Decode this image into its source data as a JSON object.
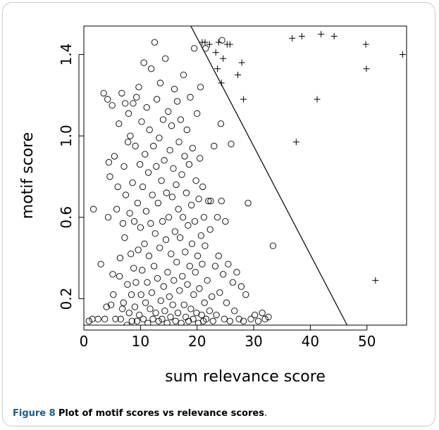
{
  "caption": {
    "figure_label": "Figure 8",
    "title": "Plot of motif scores vs relevance scores",
    "end": "."
  },
  "chart_data": {
    "type": "scatter",
    "xlabel": "sum relevance score",
    "ylabel": "motif score",
    "xlim": [
      0,
      57
    ],
    "ylim": [
      0.07,
      1.54
    ],
    "xticks": [
      "0",
      "10",
      "20",
      "30",
      "40",
      "50"
    ],
    "yticks": [
      "0.2",
      "0.6",
      "1.0",
      "1.4"
    ],
    "xtick_values": [
      0,
      10,
      20,
      30,
      40,
      50
    ],
    "ytick_values": [
      0.2,
      0.6,
      1.0,
      1.4
    ],
    "grid": false,
    "reference_line": {
      "from": [
        18.9,
        1.54
      ],
      "to": [
        46.5,
        0.07
      ]
    },
    "series": [
      {
        "marker": "circle",
        "points": [
          [
            0.9,
            0.09
          ],
          [
            1.5,
            0.1
          ],
          [
            1.7,
            0.64
          ],
          [
            2.5,
            0.1
          ],
          [
            3.0,
            0.37
          ],
          [
            3.5,
            1.21
          ],
          [
            3.7,
            0.1
          ],
          [
            4.0,
            0.16
          ],
          [
            4.2,
            1.18
          ],
          [
            4.3,
            0.6
          ],
          [
            4.4,
            0.87
          ],
          [
            4.6,
            0.8
          ],
          [
            4.8,
            0.17
          ],
          [
            5.0,
            1.15
          ],
          [
            5.1,
            0.32
          ],
          [
            5.2,
            0.22
          ],
          [
            5.4,
            0.9
          ],
          [
            5.6,
            0.1
          ],
          [
            5.8,
            0.64
          ],
          [
            6.0,
            0.75
          ],
          [
            6.2,
            1.06
          ],
          [
            6.3,
            0.31
          ],
          [
            6.4,
            0.4
          ],
          [
            6.5,
            0.1
          ],
          [
            6.7,
            1.21
          ],
          [
            6.8,
            0.15
          ],
          [
            6.9,
            0.57
          ],
          [
            7.0,
            0.18
          ],
          [
            7.1,
            0.85
          ],
          [
            7.2,
            0.5
          ],
          [
            7.3,
            1.16
          ],
          [
            7.4,
            0.71
          ],
          [
            7.6,
            0.07
          ],
          [
            7.7,
            0.27
          ],
          [
            7.8,
            0.97
          ],
          [
            7.9,
            1.11
          ],
          [
            8.0,
            0.13
          ],
          [
            8.1,
            0.62
          ],
          [
            8.2,
            1.0
          ],
          [
            8.3,
            0.42
          ],
          [
            8.4,
            0.22
          ],
          [
            8.5,
            0.09
          ],
          [
            8.6,
            0.77
          ],
          [
            8.7,
            1.16
          ],
          [
            8.8,
            0.35
          ],
          [
            8.9,
            0.58
          ],
          [
            9.0,
            0.16
          ],
          [
            9.1,
            0.95
          ],
          [
            9.2,
            0.28
          ],
          [
            9.3,
            1.19
          ],
          [
            9.4,
            0.09
          ],
          [
            9.5,
            0.67
          ],
          [
            9.6,
            0.44
          ],
          [
            9.7,
            1.24
          ],
          [
            9.8,
            0.12
          ],
          [
            9.9,
            0.86
          ],
          [
            10.0,
            0.55
          ],
          [
            10.1,
            0.22
          ],
          [
            10.2,
            1.07
          ],
          [
            10.3,
            0.34
          ],
          [
            10.4,
            0.75
          ],
          [
            10.5,
            0.1
          ],
          [
            10.6,
            1.36
          ],
          [
            10.7,
            0.47
          ],
          [
            10.8,
            0.91
          ],
          [
            10.9,
            0.18
          ],
          [
            11.0,
            0.63
          ],
          [
            11.1,
            1.14
          ],
          [
            11.2,
            0.28
          ],
          [
            11.3,
            0.08
          ],
          [
            11.4,
            0.82
          ],
          [
            11.5,
            0.41
          ],
          [
            11.6,
            1.03
          ],
          [
            11.7,
            0.15
          ],
          [
            11.8,
            0.57
          ],
          [
            11.9,
            1.33
          ],
          [
            12.0,
            0.23
          ],
          [
            12.1,
            0.71
          ],
          [
            12.2,
            0.1
          ],
          [
            12.3,
            0.95
          ],
          [
            12.4,
            0.36
          ],
          [
            12.5,
            1.46
          ],
          [
            12.6,
            0.52
          ],
          [
            12.7,
            0.13
          ],
          [
            12.8,
            0.85
          ],
          [
            12.9,
            1.18
          ],
          [
            13.0,
            0.3
          ],
          [
            13.1,
            0.67
          ],
          [
            13.2,
            0.09
          ],
          [
            13.3,
            0.99
          ],
          [
            13.4,
            0.45
          ],
          [
            13.5,
            1.26
          ],
          [
            13.6,
            0.19
          ],
          [
            13.7,
            0.78
          ],
          [
            13.8,
            0.1
          ],
          [
            13.9,
            0.58
          ],
          [
            14.0,
            1.08
          ],
          [
            14.1,
            0.26
          ],
          [
            14.2,
            0.88
          ],
          [
            14.3,
            0.14
          ],
          [
            14.4,
            1.38
          ],
          [
            14.5,
            0.49
          ],
          [
            14.6,
            0.72
          ],
          [
            14.7,
            0.08
          ],
          [
            14.8,
            0.33
          ],
          [
            14.9,
            1.12
          ],
          [
            15.0,
            0.6
          ],
          [
            15.1,
            0.21
          ],
          [
            15.2,
            0.93
          ],
          [
            15.3,
            0.11
          ],
          [
            15.4,
            0.42
          ],
          [
            15.5,
            1.05
          ],
          [
            15.6,
            0.7
          ],
          [
            15.7,
            0.17
          ],
          [
            15.8,
            0.84
          ],
          [
            15.9,
            0.29
          ],
          [
            16.0,
            1.23
          ],
          [
            16.1,
            0.53
          ],
          [
            16.2,
            0.09
          ],
          [
            16.3,
            0.76
          ],
          [
            16.4,
            0.38
          ],
          [
            16.5,
            1.17
          ],
          [
            16.6,
            0.13
          ],
          [
            16.7,
            0.64
          ],
          [
            16.8,
            0.97
          ],
          [
            16.9,
            0.24
          ],
          [
            17.0,
            0.5
          ],
          [
            17.1,
            1.08
          ],
          [
            17.2,
            0.08
          ],
          [
            17.3,
            0.81
          ],
          [
            17.4,
            0.31
          ],
          [
            17.5,
            0.6
          ],
          [
            17.6,
            1.3
          ],
          [
            17.7,
            0.17
          ],
          [
            17.8,
            0.9
          ],
          [
            17.9,
            0.43
          ],
          [
            18.0,
            0.11
          ],
          [
            18.1,
            0.72
          ],
          [
            18.2,
            1.03
          ],
          [
            18.3,
            0.27
          ],
          [
            18.4,
            0.56
          ],
          [
            18.5,
            0.09
          ],
          [
            18.6,
            0.86
          ],
          [
            18.7,
            0.36
          ],
          [
            18.8,
            1.19
          ],
          [
            18.9,
            0.15
          ],
          [
            19.0,
            0.66
          ],
          [
            19.1,
            0.47
          ],
          [
            19.2,
            0.94
          ],
          [
            19.3,
            0.1
          ],
          [
            19.4,
            0.22
          ],
          [
            19.5,
            1.43
          ],
          [
            19.6,
            0.58
          ],
          [
            19.7,
            0.33
          ],
          [
            19.8,
            0.78
          ],
          [
            19.9,
            0.13
          ],
          [
            20.0,
            1.11
          ],
          [
            20.1,
            0.41
          ],
          [
            20.2,
            0.08
          ],
          [
            20.3,
            0.69
          ],
          [
            20.4,
            0.25
          ],
          [
            20.5,
            0.89
          ],
          [
            20.6,
            1.24
          ],
          [
            20.7,
            0.51
          ],
          [
            20.8,
            0.12
          ],
          [
            20.9,
            0.37
          ],
          [
            21.0,
            0.75
          ],
          [
            21.1,
            0.09
          ],
          [
            21.2,
            0.6
          ],
          [
            21.3,
            0.18
          ],
          [
            21.4,
            0.46
          ],
          [
            21.5,
            1.43
          ],
          [
            21.6,
            0.1
          ],
          [
            21.8,
            0.29
          ],
          [
            22.0,
            0.68
          ],
          [
            22.2,
            0.14
          ],
          [
            22.3,
            0.54
          ],
          [
            22.4,
            0.68
          ],
          [
            22.6,
            0.21
          ],
          [
            22.8,
            0.09
          ],
          [
            23.0,
            0.95
          ],
          [
            23.2,
            0.36
          ],
          [
            23.4,
            0.12
          ],
          [
            23.6,
            0.6
          ],
          [
            23.8,
            0.41
          ],
          [
            24.0,
            0.23
          ],
          [
            24.2,
            1.06
          ],
          [
            24.3,
            0.68
          ],
          [
            24.4,
            1.47
          ],
          [
            24.6,
            0.32
          ],
          [
            24.8,
            0.1
          ],
          [
            25.0,
            0.58
          ],
          [
            25.2,
            0.18
          ],
          [
            25.5,
            0.37
          ],
          [
            25.8,
            0.09
          ],
          [
            26.0,
            0.96
          ],
          [
            26.3,
            0.28
          ],
          [
            26.6,
            0.14
          ],
          [
            27.0,
            0.33
          ],
          [
            27.4,
            0.1
          ],
          [
            27.8,
            0.26
          ],
          [
            28.2,
            0.09
          ],
          [
            28.6,
            0.22
          ],
          [
            29.0,
            0.67
          ],
          [
            29.5,
            0.1
          ],
          [
            30.2,
            0.12
          ],
          [
            30.8,
            0.09
          ],
          [
            31.5,
            0.13
          ],
          [
            32.0,
            0.1
          ],
          [
            32.6,
            0.11
          ],
          [
            33.4,
            0.46
          ]
        ]
      },
      {
        "marker": "plus",
        "points": [
          [
            20.9,
            1.46
          ],
          [
            21.4,
            1.46
          ],
          [
            22.2,
            1.45
          ],
          [
            23.3,
            1.41
          ],
          [
            23.6,
            1.33
          ],
          [
            23.8,
            1.46
          ],
          [
            24.3,
            1.26
          ],
          [
            24.6,
            1.38
          ],
          [
            25.3,
            1.45
          ],
          [
            25.8,
            1.45
          ],
          [
            27.2,
            1.3
          ],
          [
            27.9,
            1.36
          ],
          [
            28.2,
            1.18
          ],
          [
            36.8,
            1.48
          ],
          [
            37.5,
            0.97
          ],
          [
            38.5,
            1.49
          ],
          [
            41.2,
            1.18
          ],
          [
            41.9,
            1.5
          ],
          [
            44.2,
            1.49
          ],
          [
            49.8,
            1.45
          ],
          [
            49.9,
            1.33
          ],
          [
            51.5,
            0.29
          ],
          [
            56.3,
            1.4
          ]
        ]
      }
    ]
  }
}
